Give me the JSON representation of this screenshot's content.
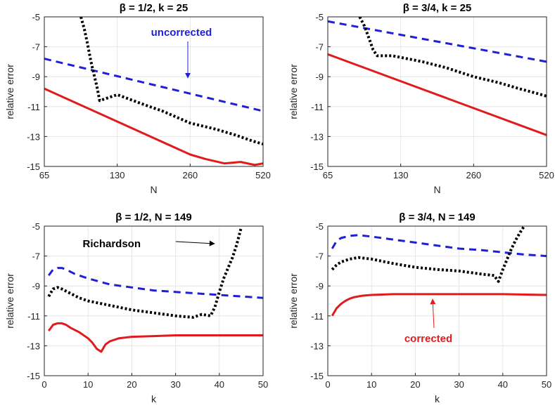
{
  "chart_data": [
    {
      "type": "line",
      "title": "β = 1/2, k = 25",
      "xlabel": "N",
      "ylabel": "relative error",
      "xscale": "log",
      "xlim": [
        65,
        520
      ],
      "ylim": [
        -15,
        -5
      ],
      "xticks": [
        65,
        130,
        260,
        520
      ],
      "xtick_labels": [
        "65",
        "130",
        "260",
        "520"
      ],
      "yticks": [
        -15,
        -13,
        -11,
        -9,
        -7,
        -5
      ],
      "ytick_labels": [
        "-15",
        "-13",
        "-11",
        "-9",
        "-7",
        "-5"
      ],
      "grid": true,
      "series": [
        {
          "name": "uncorrected",
          "style": "dashed",
          "color": "#1f1fd6",
          "x": [
            65,
            520
          ],
          "y": [
            -7.8,
            -11.3
          ]
        },
        {
          "name": "corrected",
          "style": "solid",
          "color": "#e31a1c",
          "x": [
            65,
            260,
            300,
            360,
            420,
            480,
            520
          ],
          "y": [
            -9.8,
            -14.2,
            -14.5,
            -14.8,
            -14.7,
            -14.9,
            -14.8
          ]
        },
        {
          "name": "Richardson",
          "style": "dotted",
          "color": "#000000",
          "x": [
            92,
            95,
            98,
            101,
            104,
            107,
            110,
            130,
            170,
            200,
            260,
            330,
            400,
            470,
            520
          ],
          "y": [
            -5,
            -5.8,
            -6.8,
            -7.9,
            -8.8,
            -9.6,
            -10.6,
            -10.2,
            -10.9,
            -11.3,
            -12.1,
            -12.5,
            -12.9,
            -13.3,
            -13.5
          ]
        }
      ],
      "annotations": [
        {
          "text": "uncorrected",
          "color": "#1f1fd6",
          "target": "uncorrected"
        }
      ]
    },
    {
      "type": "line",
      "title": "β = 3/4, k = 25",
      "xlabel": "N",
      "ylabel": "relative error",
      "xscale": "log",
      "xlim": [
        65,
        520
      ],
      "ylim": [
        -15,
        -5
      ],
      "xticks": [
        65,
        130,
        260,
        520
      ],
      "xtick_labels": [
        "65",
        "130",
        "260",
        "520"
      ],
      "yticks": [
        -15,
        -13,
        -11,
        -9,
        -7,
        -5
      ],
      "ytick_labels": [
        "-15",
        "-13",
        "-11",
        "-9",
        "-7",
        "-5"
      ],
      "grid": true,
      "series": [
        {
          "name": "uncorrected",
          "style": "dashed",
          "color": "#1f1fd6",
          "x": [
            65,
            520
          ],
          "y": [
            -5.3,
            -8.0
          ]
        },
        {
          "name": "corrected",
          "style": "solid",
          "color": "#e31a1c",
          "x": [
            65,
            520
          ],
          "y": [
            -7.5,
            -12.9
          ]
        },
        {
          "name": "Richardson",
          "style": "dotted",
          "color": "#000000",
          "x": [
            88,
            92,
            96,
            100,
            104,
            120,
            160,
            200,
            260,
            330,
            400,
            470,
            520
          ],
          "y": [
            -5,
            -5.6,
            -6.4,
            -7.2,
            -7.6,
            -7.6,
            -8.0,
            -8.4,
            -9.0,
            -9.4,
            -9.8,
            -10.1,
            -10.3
          ]
        }
      ]
    },
    {
      "type": "line",
      "title": "β = 1/2, N = 149",
      "xlabel": "k",
      "ylabel": "relative error",
      "xscale": "linear",
      "xlim": [
        0,
        50
      ],
      "ylim": [
        -15,
        -5
      ],
      "xticks": [
        0,
        10,
        20,
        30,
        40,
        50
      ],
      "xtick_labels": [
        "0",
        "10",
        "20",
        "30",
        "40",
        "50"
      ],
      "yticks": [
        -15,
        -13,
        -11,
        -9,
        -7,
        -5
      ],
      "ytick_labels": [
        "-15",
        "-13",
        "-11",
        "-9",
        "-7",
        "-5"
      ],
      "grid": true,
      "series": [
        {
          "name": "uncorrected",
          "style": "dashed",
          "color": "#1f1fd6",
          "x": [
            1,
            2,
            3,
            4,
            5,
            7,
            10,
            15,
            20,
            25,
            30,
            35,
            40,
            45,
            50
          ],
          "y": [
            -8.3,
            -7.9,
            -7.8,
            -7.8,
            -7.9,
            -8.2,
            -8.5,
            -8.9,
            -9.1,
            -9.3,
            -9.4,
            -9.5,
            -9.6,
            -9.7,
            -9.8
          ]
        },
        {
          "name": "corrected",
          "style": "solid",
          "color": "#e31a1c",
          "x": [
            1,
            2,
            3,
            4,
            5,
            6,
            8,
            10,
            11,
            12,
            13,
            14,
            15,
            17,
            20,
            25,
            30,
            35,
            40,
            45,
            50
          ],
          "y": [
            -12.0,
            -11.6,
            -11.5,
            -11.5,
            -11.6,
            -11.8,
            -12.1,
            -12.5,
            -12.8,
            -13.2,
            -13.4,
            -12.9,
            -12.7,
            -12.5,
            -12.4,
            -12.35,
            -12.3,
            -12.3,
            -12.3,
            -12.3,
            -12.3
          ]
        },
        {
          "name": "Richardson",
          "style": "dotted",
          "color": "#000000",
          "x": [
            1,
            2,
            3,
            4,
            6,
            8,
            10,
            15,
            20,
            25,
            30,
            34,
            36,
            38,
            39,
            40,
            41,
            42,
            43,
            44,
            45
          ],
          "y": [
            -9.7,
            -9.2,
            -9.1,
            -9.2,
            -9.5,
            -9.8,
            -10.0,
            -10.3,
            -10.6,
            -10.8,
            -11.0,
            -11.1,
            -10.9,
            -11.0,
            -10.4,
            -9.4,
            -8.5,
            -7.8,
            -7.1,
            -6.2,
            -5.1
          ]
        }
      ],
      "annotations": [
        {
          "text": "Richardson",
          "color": "#000000",
          "target": "Richardson"
        }
      ]
    },
    {
      "type": "line",
      "title": "β = 3/4, N = 149",
      "xlabel": "k",
      "ylabel": "relative error",
      "xscale": "linear",
      "xlim": [
        0,
        50
      ],
      "ylim": [
        -15,
        -5
      ],
      "xticks": [
        0,
        10,
        20,
        30,
        40,
        50
      ],
      "xtick_labels": [
        "0",
        "10",
        "20",
        "30",
        "40",
        "50"
      ],
      "yticks": [
        -15,
        -13,
        -11,
        -9,
        -7,
        -5
      ],
      "ytick_labels": [
        "-15",
        "-13",
        "-11",
        "-9",
        "-7",
        "-5"
      ],
      "grid": true,
      "series": [
        {
          "name": "uncorrected",
          "style": "dashed",
          "color": "#1f1fd6",
          "x": [
            1,
            2,
            3,
            5,
            7,
            10,
            15,
            20,
            25,
            30,
            35,
            40,
            45,
            50
          ],
          "y": [
            -6.5,
            -6.0,
            -5.8,
            -5.65,
            -5.6,
            -5.7,
            -5.9,
            -6.1,
            -6.3,
            -6.5,
            -6.6,
            -6.75,
            -6.9,
            -7.0
          ]
        },
        {
          "name": "corrected",
          "style": "solid",
          "color": "#e31a1c",
          "x": [
            1,
            2,
            3,
            4,
            5,
            6,
            8,
            10,
            15,
            20,
            30,
            40,
            50
          ],
          "y": [
            -11.0,
            -10.5,
            -10.2,
            -10.0,
            -9.85,
            -9.75,
            -9.65,
            -9.6,
            -9.55,
            -9.55,
            -9.55,
            -9.55,
            -9.6
          ]
        },
        {
          "name": "Richardson",
          "style": "dotted",
          "color": "#000000",
          "x": [
            1,
            2,
            3,
            4,
            5,
            7,
            10,
            15,
            20,
            25,
            30,
            35,
            38,
            39,
            40,
            41,
            42,
            43,
            44,
            45
          ],
          "y": [
            -7.9,
            -7.6,
            -7.4,
            -7.3,
            -7.2,
            -7.1,
            -7.2,
            -7.5,
            -7.75,
            -7.9,
            -8.0,
            -8.2,
            -8.3,
            -8.7,
            -7.9,
            -7.2,
            -6.5,
            -5.9,
            -5.4,
            -4.95
          ]
        }
      ],
      "annotations": [
        {
          "text": "corrected",
          "color": "#e31a1c",
          "target": "corrected"
        }
      ]
    }
  ]
}
